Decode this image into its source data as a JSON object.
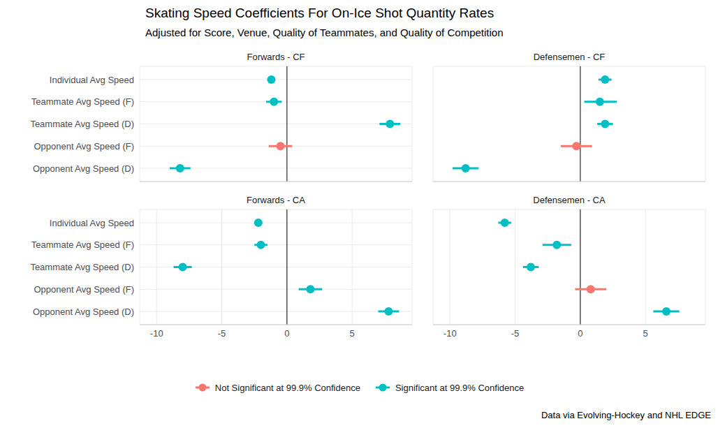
{
  "chart_data": {
    "type": "dot_whisker",
    "title": "Skating Speed Coefficients For On-Ice Shot Quantity Rates",
    "subtitle": "Adjusted for Score, Venue, Quality of Teammates, and Quality of Competition",
    "caption": "Data via Evolving-Hockey and NHL EDGE",
    "legend": "bottom",
    "grid": true,
    "reference_x": 0,
    "categories": [
      "Individual Avg Speed",
      "Teammate Avg Speed (F)",
      "Teammate Avg Speed (D)",
      "Opponent Avg Speed (F)",
      "Opponent Avg Speed (D)"
    ],
    "xlim": [
      -11.3,
      9.6
    ],
    "xticks": [
      -10,
      -5,
      0,
      5
    ],
    "series": [
      {
        "name": "Not Significant at 99.9% Confidence",
        "color": "#F8766D"
      },
      {
        "name": "Significant at 99.9% Confidence",
        "color": "#00BFC4"
      }
    ],
    "panels": [
      {
        "title": "Forwards - CF",
        "tick_labels": "y",
        "values": [
          -1.2,
          -1.0,
          7.9,
          -0.5,
          -8.2
        ],
        "lower": [
          -1.5,
          -1.6,
          7.1,
          -1.4,
          -9.0
        ],
        "upper": [
          -0.9,
          -0.4,
          8.7,
          0.4,
          -7.4
        ],
        "significance": [
          "Significant at 99.9% Confidence",
          "Significant at 99.9% Confidence",
          "Significant at 99.9% Confidence",
          "Not Significant at 99.9% Confidence",
          "Significant at 99.9% Confidence"
        ]
      },
      {
        "title": "Defensemen - CF",
        "tick_labels": false,
        "values": [
          1.9,
          1.5,
          1.9,
          -0.3,
          -8.8
        ],
        "lower": [
          1.4,
          0.3,
          1.3,
          -1.5,
          -9.8
        ],
        "upper": [
          2.4,
          2.8,
          2.5,
          0.9,
          -7.8
        ],
        "significance": [
          "Significant at 99.9% Confidence",
          "Significant at 99.9% Confidence",
          "Significant at 99.9% Confidence",
          "Not Significant at 99.9% Confidence",
          "Significant at 99.9% Confidence"
        ]
      },
      {
        "title": "Forwards - CA",
        "tick_labels": true,
        "values": [
          -2.2,
          -2.0,
          -8.0,
          1.8,
          7.8
        ],
        "lower": [
          -2.5,
          -2.5,
          -8.7,
          0.9,
          7.0
        ],
        "upper": [
          -1.9,
          -1.5,
          -7.3,
          2.7,
          8.6
        ],
        "significance": [
          "Significant at 99.9% Confidence",
          "Significant at 99.9% Confidence",
          "Significant at 99.9% Confidence",
          "Significant at 99.9% Confidence",
          "Significant at 99.9% Confidence"
        ]
      },
      {
        "title": "Defensemen - CA",
        "tick_labels": "x",
        "values": [
          -5.8,
          -1.8,
          -3.8,
          0.8,
          6.6
        ],
        "lower": [
          -6.3,
          -2.9,
          -4.4,
          -0.4,
          5.6
        ],
        "upper": [
          -5.3,
          -0.7,
          -3.2,
          2.0,
          7.6
        ],
        "significance": [
          "Significant at 99.9% Confidence",
          "Significant at 99.9% Confidence",
          "Significant at 99.9% Confidence",
          "Not Significant at 99.9% Confidence",
          "Significant at 99.9% Confidence"
        ]
      }
    ]
  }
}
